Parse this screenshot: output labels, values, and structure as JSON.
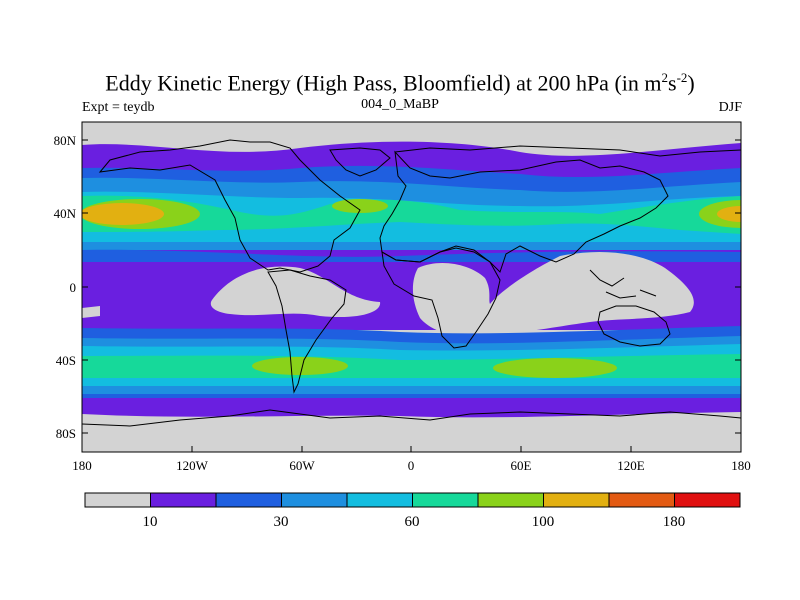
{
  "figure": {
    "title_main": "Eddy Kinetic Energy (High Pass, Bloomfield) at 200 hPa (in m",
    "title_sup1": "2",
    "title_mid": "s",
    "title_sup2": "-2",
    "title_end": ")",
    "left_label": "Expt = teydb",
    "center_label": "004_0_MaBP",
    "right_label": "DJF"
  },
  "axes": {
    "lat_ticks": [
      "80N",
      "40N",
      "0",
      "40S",
      "80S"
    ],
    "lon_ticks": [
      "180",
      "120W",
      "60W",
      "0",
      "60E",
      "120E",
      "180"
    ]
  },
  "colorbar": {
    "colors": [
      "#d3d3d3",
      "#6a1fe0",
      "#1f5fe0",
      "#1e8fe0",
      "#13bde0",
      "#16d99a",
      "#8ad21a",
      "#e2b011",
      "#e35a12",
      "#e01010"
    ],
    "labels": [
      "10",
      "30",
      "60",
      "100",
      "180"
    ]
  },
  "palette": {
    "land_outline": "#000000",
    "background": "#ffffff"
  }
}
